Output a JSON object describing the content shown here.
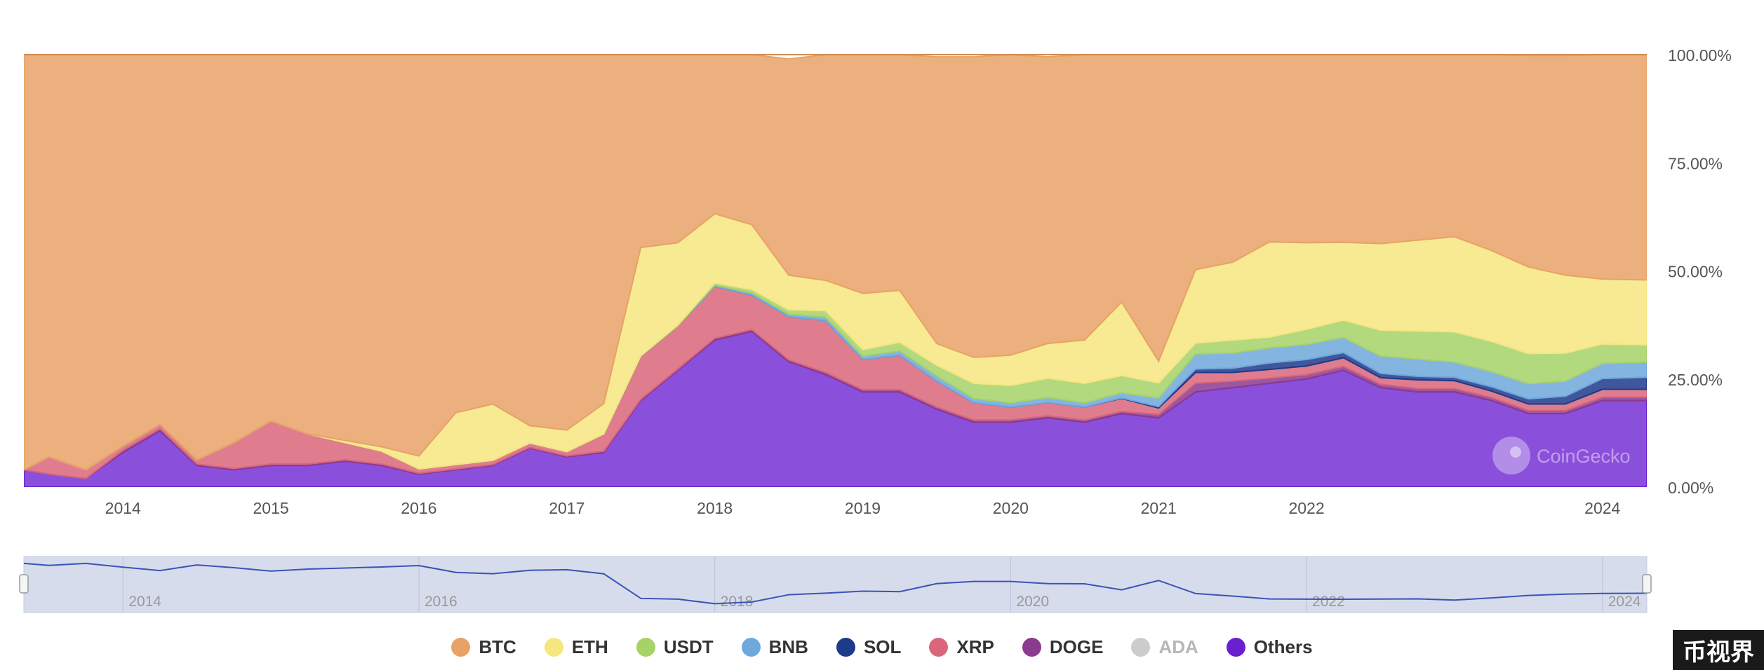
{
  "chart_data": {
    "type": "area",
    "stacking": "percent",
    "x_ticks": [
      "2014",
      "2015",
      "2016",
      "2017",
      "2018",
      "2019",
      "2020",
      "2021",
      "2022",
      "2024"
    ],
    "y_ticks": [
      "0.00%",
      "25.00%",
      "50.00%",
      "75.00%",
      "100.00%"
    ],
    "ylim": [
      0,
      100
    ],
    "xlim": [
      2013.33,
      2024.3
    ],
    "navigator_ticks": [
      "2014",
      "2016",
      "2018",
      "2020",
      "2022",
      "2024"
    ],
    "legend": [
      {
        "name": "BTC",
        "color": "#E8A266",
        "visible": true
      },
      {
        "name": "ETH",
        "color": "#F6E680",
        "visible": true
      },
      {
        "name": "USDT",
        "color": "#A6D267",
        "visible": true
      },
      {
        "name": "BNB",
        "color": "#6FA8DC",
        "visible": true
      },
      {
        "name": "SOL",
        "color": "#1E3A8A",
        "visible": true
      },
      {
        "name": "XRP",
        "color": "#D9667A",
        "visible": true
      },
      {
        "name": "DOGE",
        "color": "#8B3A8F",
        "visible": true
      },
      {
        "name": "ADA",
        "color": "#CCCCCC",
        "visible": false
      },
      {
        "name": "Others",
        "color": "#6A1FD1",
        "visible": true
      }
    ],
    "x": [
      2013.33,
      2013.5,
      2013.75,
      2014.0,
      2014.25,
      2014.5,
      2014.75,
      2015.0,
      2015.25,
      2015.5,
      2015.75,
      2016.0,
      2016.25,
      2016.5,
      2016.75,
      2017.0,
      2017.25,
      2017.5,
      2017.75,
      2018.0,
      2018.25,
      2018.5,
      2018.75,
      2019.0,
      2019.25,
      2019.5,
      2019.75,
      2020.0,
      2020.25,
      2020.5,
      2020.75,
      2021.0,
      2021.25,
      2021.5,
      2021.75,
      2022.0,
      2022.25,
      2022.5,
      2022.75,
      2023.0,
      2023.25,
      2023.5,
      2023.75,
      2024.0,
      2024.3
    ],
    "series": [
      {
        "name": "Others",
        "values": [
          4,
          3,
          2,
          8,
          13,
          5,
          4,
          5,
          5,
          6,
          5,
          3,
          4,
          5,
          9,
          7,
          8,
          20,
          27,
          34,
          36,
          29,
          26,
          22,
          22,
          18,
          15,
          15,
          16,
          15,
          17,
          16,
          22,
          23,
          24,
          25,
          27,
          23,
          22,
          22,
          20,
          17,
          17,
          20,
          20
        ]
      },
      {
        "name": "DOGE",
        "values": [
          0,
          0,
          0,
          0.5,
          0.5,
          0.3,
          0.3,
          0.3,
          0.3,
          0.3,
          0.3,
          0.2,
          0.2,
          0.2,
          0.2,
          0.2,
          0.3,
          0.3,
          0.3,
          0.4,
          0.4,
          0.4,
          0.5,
          0.5,
          0.5,
          0.5,
          0.5,
          0.5,
          0.5,
          0.5,
          0.5,
          0.8,
          2.0,
          1.5,
          1.2,
          1.0,
          0.9,
          0.8,
          0.8,
          0.8,
          0.7,
          0.7,
          0.7,
          0.8,
          0.8
        ]
      },
      {
        "name": "XRP",
        "values": [
          0,
          4,
          2,
          1,
          1,
          1,
          6,
          10,
          7,
          4,
          3,
          1,
          1,
          1,
          1,
          1,
          4,
          10,
          10,
          12,
          8,
          10,
          12,
          7,
          8,
          6,
          4,
          3,
          3,
          3,
          3,
          1.5,
          2.5,
          2.0,
          2.0,
          2.0,
          2.0,
          1.5,
          2.0,
          1.8,
          1.5,
          1.5,
          1.5,
          1.8,
          1.8
        ]
      },
      {
        "name": "SOL",
        "values": [
          0,
          0,
          0,
          0,
          0,
          0,
          0,
          0,
          0,
          0,
          0,
          0,
          0,
          0,
          0,
          0,
          0,
          0,
          0,
          0,
          0,
          0,
          0,
          0,
          0,
          0,
          0,
          0,
          0,
          0,
          0.1,
          0.3,
          0.8,
          1.0,
          1.5,
          1.5,
          1.2,
          1.0,
          0.8,
          0.8,
          1.0,
          1.2,
          1.8,
          2.5,
          2.8
        ]
      },
      {
        "name": "BNB",
        "values": [
          0,
          0,
          0,
          0,
          0,
          0,
          0,
          0,
          0,
          0,
          0,
          0,
          0,
          0,
          0,
          0,
          0,
          0,
          0,
          0.3,
          0.5,
          0.6,
          0.8,
          0.8,
          1.0,
          1.2,
          1.0,
          1.0,
          1.2,
          1.0,
          1.2,
          2.0,
          3.5,
          3.5,
          3.5,
          3.5,
          3.5,
          4.0,
          4.0,
          3.5,
          3.5,
          3.5,
          3.5,
          3.5,
          3.5
        ]
      },
      {
        "name": "USDT",
        "values": [
          0,
          0,
          0,
          0,
          0,
          0,
          0,
          0,
          0,
          0,
          0,
          0,
          0,
          0,
          0,
          0,
          0,
          0.1,
          0.2,
          0.5,
          0.8,
          1.0,
          1.5,
          1.5,
          2.0,
          2.5,
          3.5,
          4.0,
          4.5,
          4.5,
          4.0,
          3.5,
          2.5,
          3.0,
          2.5,
          3.5,
          4.0,
          6.0,
          6.5,
          7.0,
          7.0,
          7.0,
          6.5,
          4.5,
          4.0
        ]
      },
      {
        "name": "ETH",
        "values": [
          0,
          0,
          0,
          0,
          0,
          0,
          0,
          0,
          0,
          0.5,
          1,
          3,
          12,
          13,
          4,
          5,
          7,
          25,
          19,
          16,
          15,
          8,
          7,
          13,
          12,
          5,
          6,
          7,
          8,
          10,
          17,
          5,
          17,
          18,
          22,
          20,
          18,
          20,
          21,
          22,
          21,
          20,
          18,
          15,
          15
        ]
      },
      {
        "name": "BTC",
        "values": [
          96,
          93,
          96,
          90.5,
          85.5,
          93.7,
          89.7,
          84.7,
          87.7,
          89.2,
          90.7,
          92.8,
          82.8,
          80.8,
          85.8,
          86.8,
          80.7,
          44.6,
          43.5,
          36.8,
          39.3,
          50.0,
          52.2,
          55.2,
          54.5,
          66.3,
          69.5,
          69.5,
          66.3,
          66.0,
          57.2,
          70.9,
          51.7,
          48.0,
          43.8,
          43.5,
          43.4,
          43.7,
          43.9,
          42.1,
          45.3,
          48.9,
          50.8,
          51.9,
          52.1
        ]
      }
    ],
    "watermark": "CoinGecko"
  },
  "corner_badge": "币视界"
}
